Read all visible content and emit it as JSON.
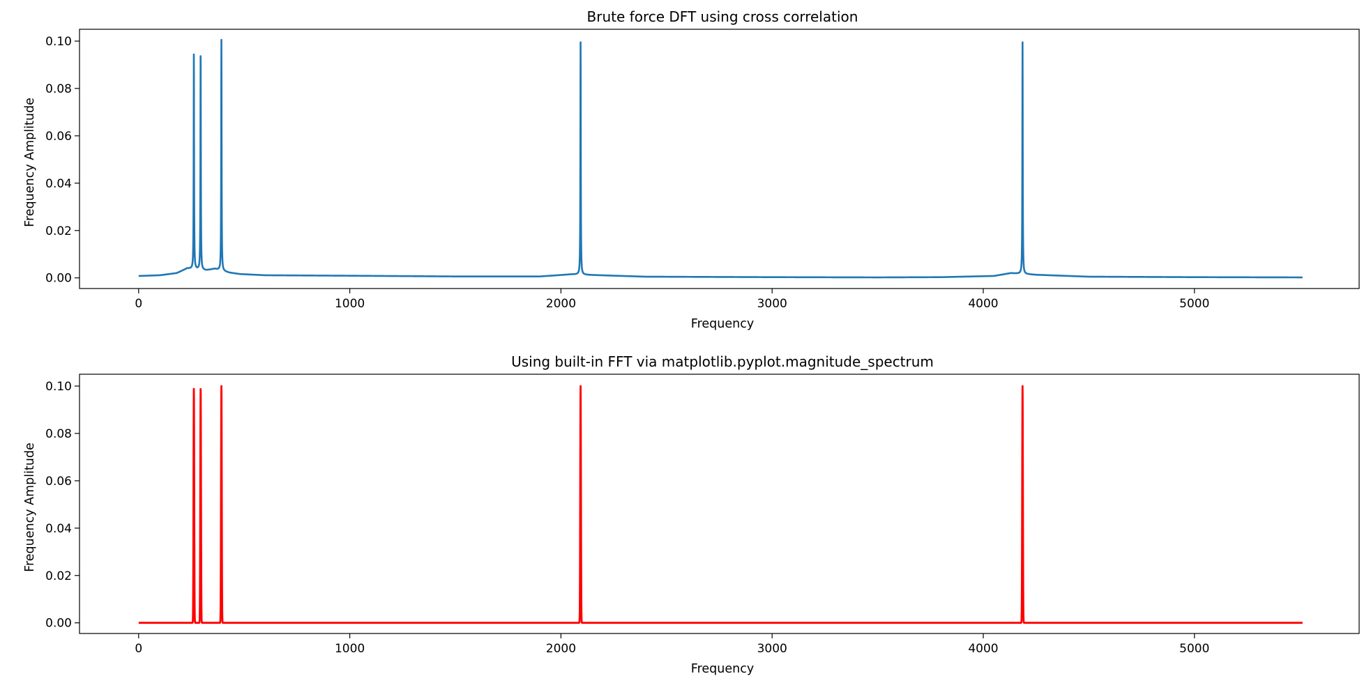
{
  "chart_data": [
    {
      "type": "line",
      "title": "Brute force DFT using cross correlation",
      "xlabel": "Frequency",
      "ylabel": "Frequency Amplitude",
      "xlim": [
        -280,
        5780
      ],
      "ylim": [
        -0.0045,
        0.105
      ],
      "xticks": [
        0,
        1000,
        2000,
        3000,
        4000,
        5000
      ],
      "xtick_labels": [
        "0",
        "1000",
        "2000",
        "3000",
        "4000",
        "5000"
      ],
      "yticks": [
        0.0,
        0.02,
        0.04,
        0.06,
        0.08,
        0.1
      ],
      "ytick_labels": [
        "0.00",
        "0.02",
        "0.04",
        "0.06",
        "0.08",
        "0.10"
      ],
      "grid": false,
      "color": "#1f77b4",
      "x_range": [
        0,
        5512
      ],
      "baseline": [
        [
          0,
          0.0008
        ],
        [
          100,
          0.0011
        ],
        [
          180,
          0.002
        ],
        [
          230,
          0.004
        ],
        [
          320,
          0.0032
        ],
        [
          360,
          0.0038
        ],
        [
          430,
          0.0022
        ],
        [
          480,
          0.0016
        ],
        [
          600,
          0.0011
        ],
        [
          1000,
          0.0009
        ],
        [
          1500,
          0.0006
        ],
        [
          1900,
          0.0006
        ],
        [
          2050,
          0.0015
        ],
        [
          2150,
          0.0012
        ],
        [
          2400,
          0.0005
        ],
        [
          3000,
          0.0003
        ],
        [
          3500,
          0.0002
        ],
        [
          3800,
          0.0003
        ],
        [
          4050,
          0.0008
        ],
        [
          4130,
          0.002
        ],
        [
          4250,
          0.0013
        ],
        [
          4500,
          0.0005
        ],
        [
          5000,
          0.0003
        ],
        [
          5512,
          0.0002
        ]
      ],
      "peaks": [
        {
          "x": 261.6,
          "y": 0.095
        },
        {
          "x": 293.7,
          "y": 0.0965
        },
        {
          "x": 392.0,
          "y": 0.1005
        },
        {
          "x": 2093.0,
          "y": 0.0995
        },
        {
          "x": 4186.0,
          "y": 0.0995
        }
      ]
    },
    {
      "type": "line",
      "title": "Using built-in FFT via matplotlib.pyplot.magnitude_spectrum",
      "xlabel": "Frequency",
      "ylabel": "Frequency Amplitude",
      "xlim": [
        -280,
        5780
      ],
      "ylim": [
        -0.0045,
        0.105
      ],
      "xticks": [
        0,
        1000,
        2000,
        3000,
        4000,
        5000
      ],
      "xtick_labels": [
        "0",
        "1000",
        "2000",
        "3000",
        "4000",
        "5000"
      ],
      "yticks": [
        0.0,
        0.02,
        0.04,
        0.06,
        0.08,
        0.1
      ],
      "ytick_labels": [
        "0.00",
        "0.02",
        "0.04",
        "0.06",
        "0.08",
        "0.10"
      ],
      "grid": false,
      "color": "#ff0000",
      "x_range": [
        0,
        5512
      ],
      "baseline": [
        [
          0,
          0.0
        ],
        [
          5512,
          0.0
        ]
      ],
      "peaks": [
        {
          "x": 261.6,
          "y": 0.099
        },
        {
          "x": 293.7,
          "y": 0.0995
        },
        {
          "x": 392.0,
          "y": 0.1
        },
        {
          "x": 2093.0,
          "y": 0.1
        },
        {
          "x": 4186.0,
          "y": 0.1
        }
      ]
    }
  ]
}
